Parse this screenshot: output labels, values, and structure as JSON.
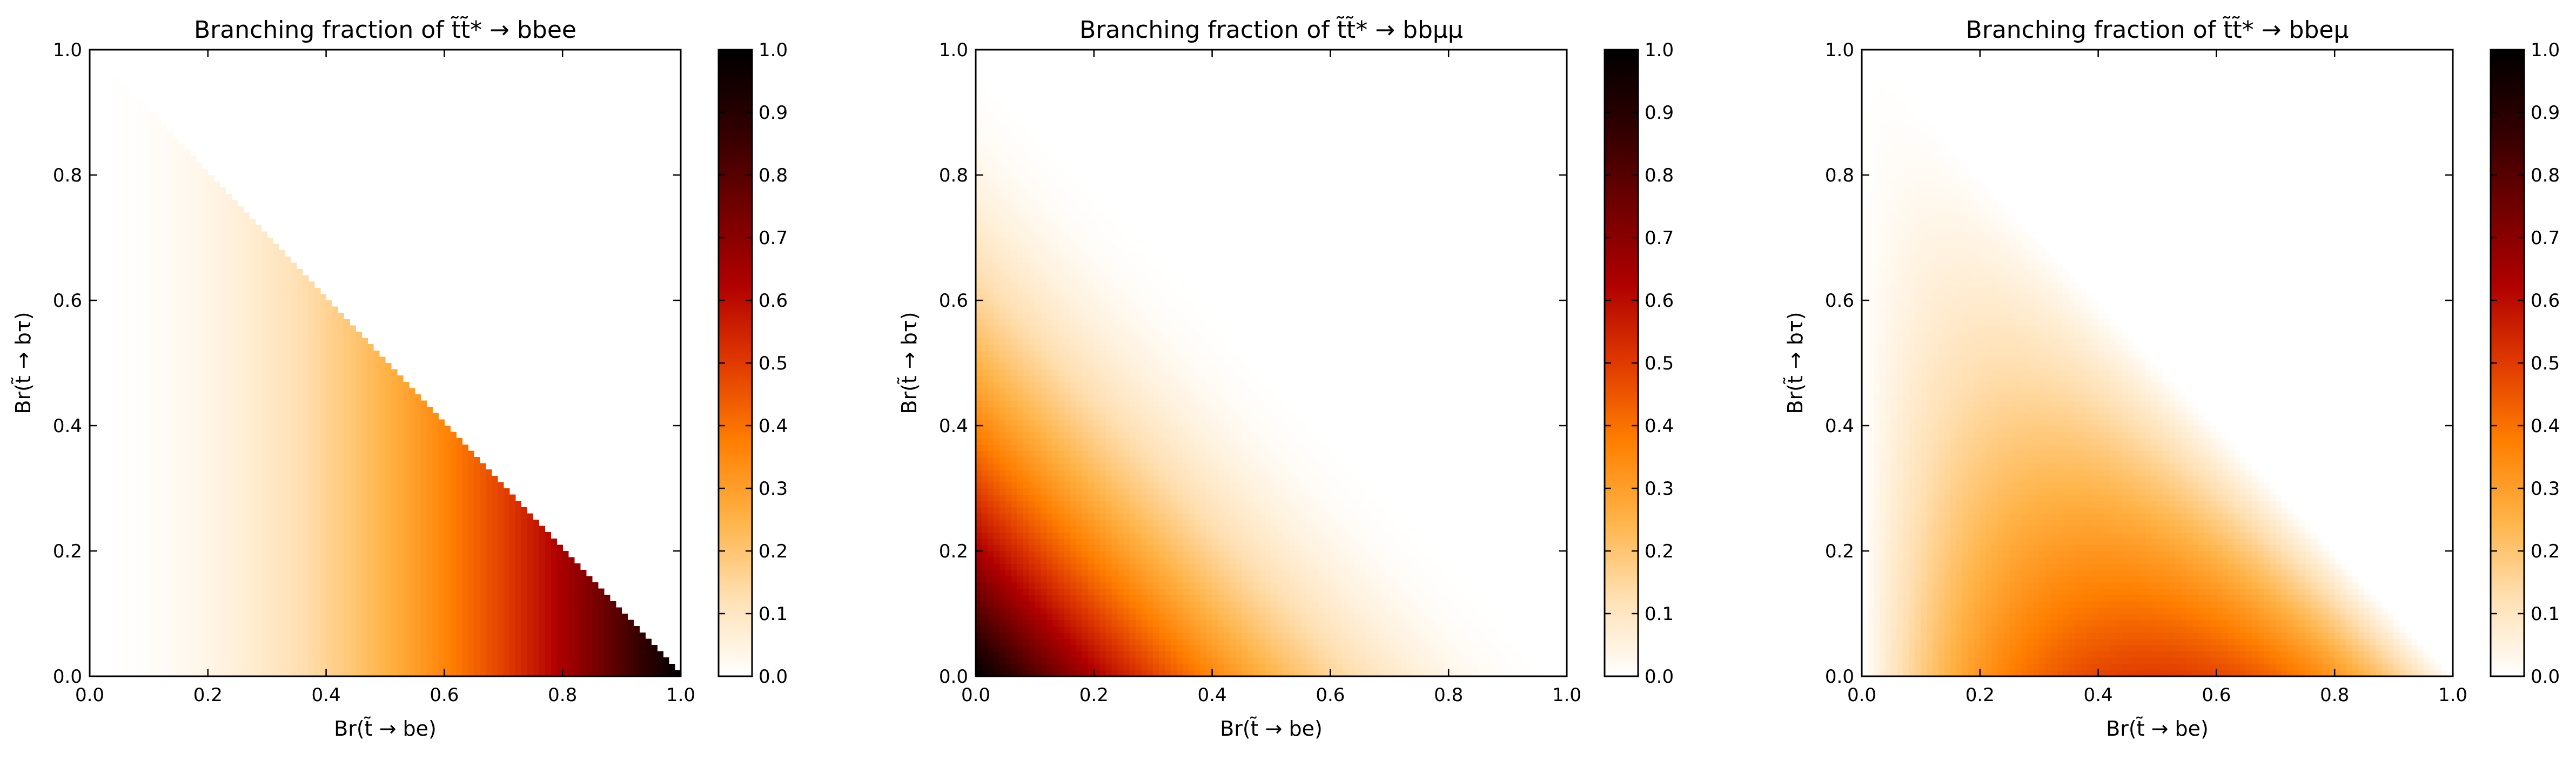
{
  "figure": {
    "colormap": "gist_heat_r",
    "colormap_stops": [
      "#ffffff",
      "#ffe0b3",
      "#ffb347",
      "#ff7f00",
      "#e03a00",
      "#b00000",
      "#700000",
      "#300000",
      "#000000"
    ]
  },
  "chart_data": [
    {
      "type": "heatmap",
      "title": "Branching fraction of t̃t̃* → bbee",
      "xlabel": "Br(t̃ → be)",
      "ylabel": "Br(t̃ → bτ)",
      "xlim": [
        0.0,
        1.0
      ],
      "ylim": [
        0.0,
        1.0
      ],
      "xticks": [
        "0.0",
        "0.2",
        "0.4",
        "0.6",
        "0.8",
        "1.0"
      ],
      "yticks": [
        "0.0",
        "0.2",
        "0.4",
        "0.6",
        "0.8",
        "1.0"
      ],
      "colorbar": {
        "range": [
          0.0,
          1.0
        ],
        "ticks": [
          "0.0",
          "0.1",
          "0.2",
          "0.3",
          "0.4",
          "0.5",
          "0.6",
          "0.7",
          "0.8",
          "0.9",
          "1.0"
        ]
      },
      "grid": false,
      "grid_resolution": 100,
      "function": "x^2 for x + y <= 1 (x = Br(t̃→be), y = Br(t̃→bτ)); blank otherwise",
      "samples": [
        {
          "x": 0.1,
          "y": 0.1,
          "z": 0.01
        },
        {
          "x": 0.3,
          "y": 0.1,
          "z": 0.09
        },
        {
          "x": 0.5,
          "y": 0.1,
          "z": 0.25
        },
        {
          "x": 0.7,
          "y": 0.1,
          "z": 0.49
        },
        {
          "x": 0.9,
          "y": 0.05,
          "z": 0.81
        }
      ]
    },
    {
      "type": "heatmap",
      "title": "Branching fraction of t̃t̃* → bbμμ",
      "xlabel": "Br(t̃ → be)",
      "ylabel": "Br(t̃ → bτ)",
      "xlim": [
        0.0,
        1.0
      ],
      "ylim": [
        0.0,
        1.0
      ],
      "xticks": [
        "0.0",
        "0.2",
        "0.4",
        "0.6",
        "0.8",
        "1.0"
      ],
      "yticks": [
        "0.0",
        "0.2",
        "0.4",
        "0.6",
        "0.8",
        "1.0"
      ],
      "colorbar": {
        "range": [
          0.0,
          1.0
        ],
        "ticks": [
          "0.0",
          "0.1",
          "0.2",
          "0.3",
          "0.4",
          "0.5",
          "0.6",
          "0.7",
          "0.8",
          "0.9",
          "1.0"
        ]
      },
      "grid": false,
      "grid_resolution": 100,
      "function": "(1 - x - y)^2 for x + y <= 1; blank otherwise",
      "samples": [
        {
          "x": 0.0,
          "y": 0.0,
          "z": 1.0
        },
        {
          "x": 0.2,
          "y": 0.2,
          "z": 0.36
        },
        {
          "x": 0.4,
          "y": 0.1,
          "z": 0.25
        },
        {
          "x": 0.1,
          "y": 0.5,
          "z": 0.16
        },
        {
          "x": 0.6,
          "y": 0.2,
          "z": 0.04
        }
      ]
    },
    {
      "type": "heatmap",
      "title": "Branching fraction of t̃t̃* → bbeμ",
      "xlabel": "Br(t̃ → be)",
      "ylabel": "Br(t̃ → bτ)",
      "xlim": [
        0.0,
        1.0
      ],
      "ylim": [
        0.0,
        1.0
      ],
      "xticks": [
        "0.0",
        "0.2",
        "0.4",
        "0.6",
        "0.8",
        "1.0"
      ],
      "yticks": [
        "0.0",
        "0.2",
        "0.4",
        "0.6",
        "0.8",
        "1.0"
      ],
      "colorbar": {
        "range": [
          0.0,
          1.0
        ],
        "ticks": [
          "0.0",
          "0.1",
          "0.2",
          "0.3",
          "0.4",
          "0.5",
          "0.6",
          "0.7",
          "0.8",
          "0.9",
          "1.0"
        ]
      },
      "grid": false,
      "grid_resolution": 100,
      "function": "2·x·(1 - x - y) for x + y <= 1; blank otherwise",
      "samples": [
        {
          "x": 0.5,
          "y": 0.0,
          "z": 0.5
        },
        {
          "x": 0.4,
          "y": 0.1,
          "z": 0.4
        },
        {
          "x": 0.2,
          "y": 0.2,
          "z": 0.24
        },
        {
          "x": 0.3,
          "y": 0.4,
          "z": 0.18
        },
        {
          "x": 0.8,
          "y": 0.1,
          "z": 0.16
        }
      ]
    }
  ]
}
